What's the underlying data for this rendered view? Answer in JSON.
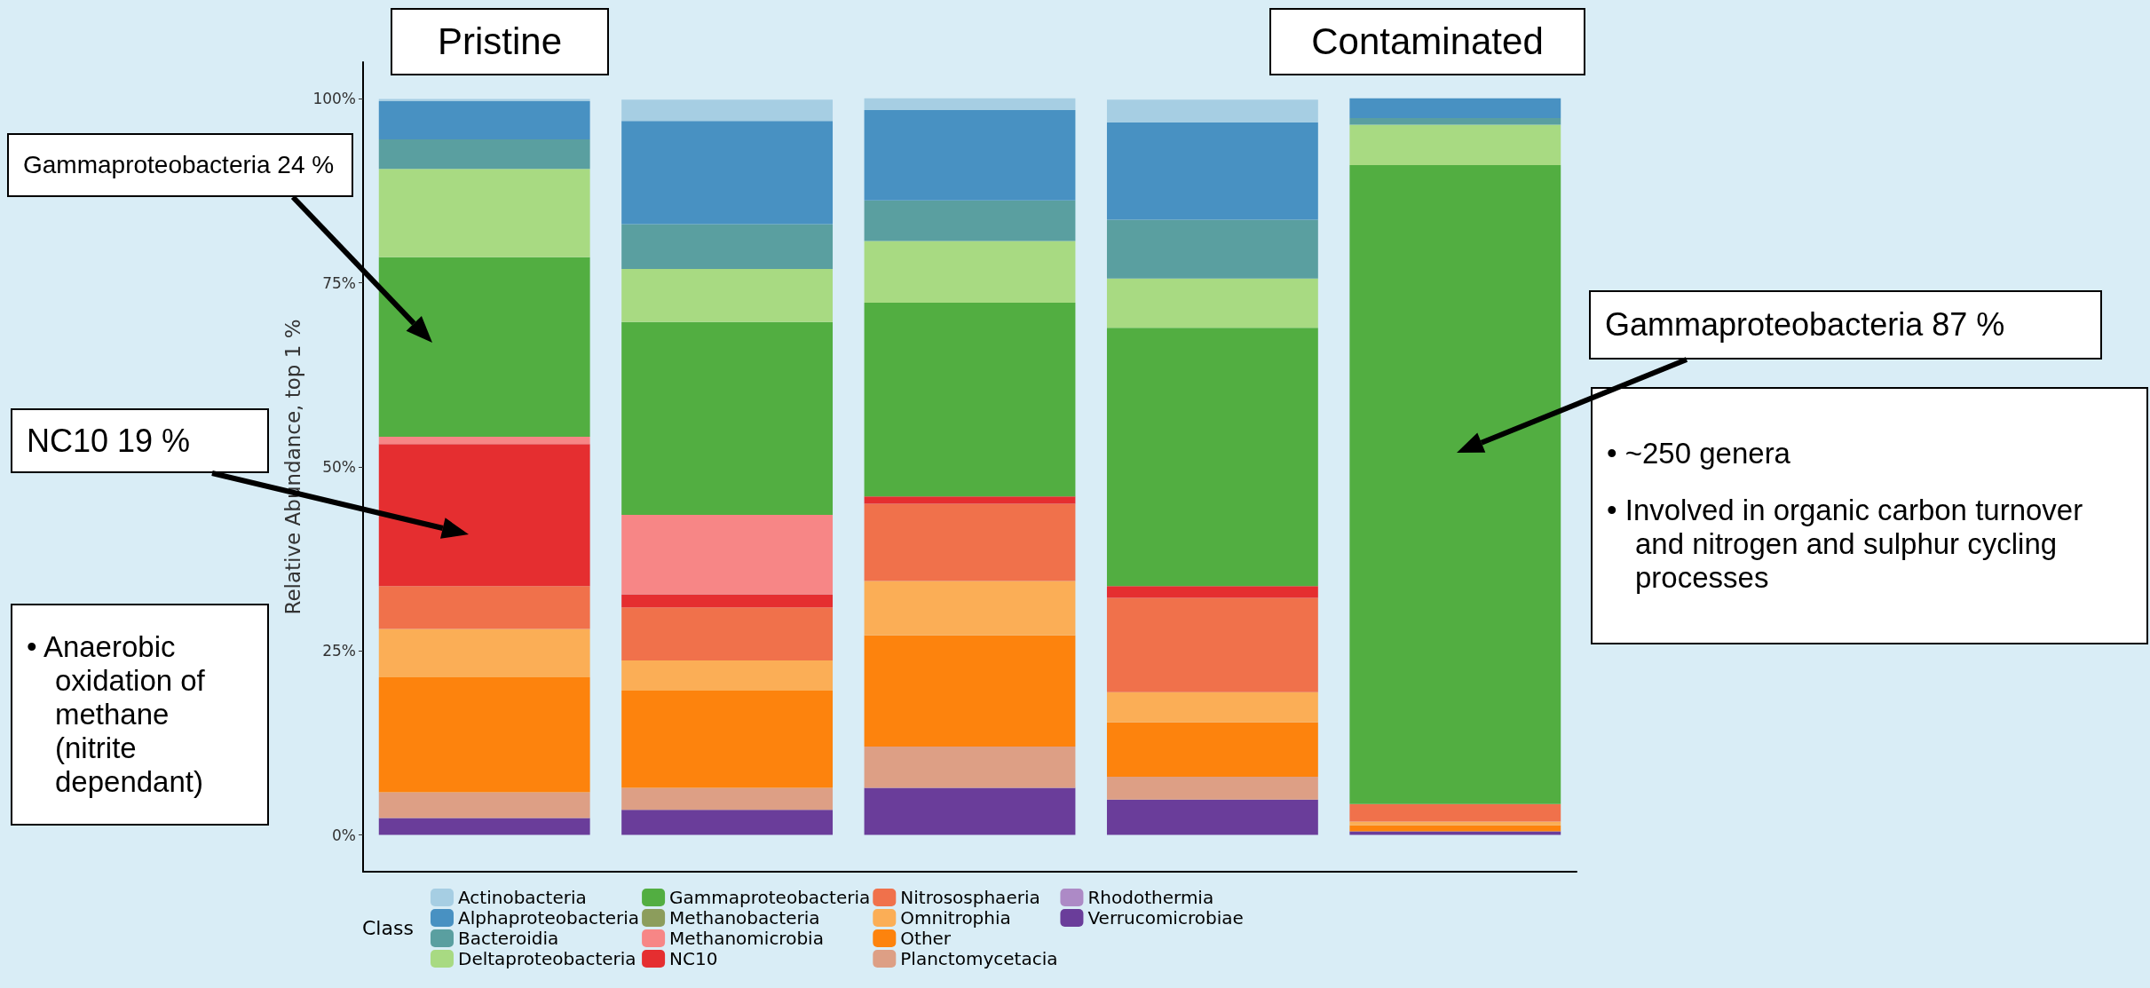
{
  "chart_data": {
    "type": "bar",
    "stacked": true,
    "categories": [
      null,
      null,
      null,
      null,
      null
    ],
    "ylabel": "Relative Abundance, top 1 %",
    "legend_title": "Class",
    "ylim": [
      -5,
      105
    ],
    "yticks": [
      {
        "value": 0,
        "label": "0%"
      },
      {
        "value": 25,
        "label": "25%"
      },
      {
        "value": 50,
        "label": "50%"
      },
      {
        "value": 75,
        "label": "75%"
      },
      {
        "value": 100,
        "label": "100%"
      }
    ],
    "tick_labels": "y",
    "grid": false,
    "legend": "bottom",
    "series": [
      {
        "name": "Verrucomicrobiae",
        "color": "#6a3d9a",
        "values": [
          2.3,
          3.4,
          6.4,
          4.8,
          0.5
        ]
      },
      {
        "name": "Rhodothermia",
        "color": "#ad8ac6",
        "values": [
          0,
          0,
          0,
          0,
          0
        ]
      },
      {
        "name": "Planctomycetacia",
        "color": "#dd9f85",
        "values": [
          3.5,
          3.0,
          5.6,
          3.1,
          0
        ]
      },
      {
        "name": "Other",
        "color": "#fd830d",
        "values": [
          15.6,
          13.2,
          15.1,
          7.4,
          0.8
        ]
      },
      {
        "name": "Omnitrophia",
        "color": "#fbae56",
        "values": [
          6.6,
          4.1,
          7.4,
          4.1,
          0.5
        ]
      },
      {
        "name": "Nitrososphaeria",
        "color": "#f0714b",
        "values": [
          5.8,
          7.2,
          10.5,
          12.8,
          2.4
        ]
      },
      {
        "name": "NC10",
        "color": "#e52e30",
        "values": [
          19.3,
          1.8,
          1.0,
          1.6,
          0
        ]
      },
      {
        "name": "Methanomicrobia",
        "color": "#f78686",
        "values": [
          1.0,
          10.8,
          0,
          0,
          0
        ]
      },
      {
        "name": "Methanobacteria",
        "color": "#8c9d5c",
        "values": [
          0,
          0,
          0,
          0,
          0
        ]
      },
      {
        "name": "Gammaproteobacteria",
        "color": "#52ae41",
        "values": [
          24.4,
          26.2,
          26.3,
          35.1,
          86.8
        ]
      },
      {
        "name": "Deltaproteobacteria",
        "color": "#a8da82",
        "values": [
          12.0,
          7.2,
          8.4,
          6.7,
          5.5
        ]
      },
      {
        "name": "Bacteroidia",
        "color": "#5a9fa0",
        "values": [
          4.0,
          6.1,
          5.5,
          8.0,
          0.9
        ]
      },
      {
        "name": "Alphaproteobacteria",
        "color": "#4891c2",
        "values": [
          5.2,
          14.0,
          12.3,
          13.2,
          2.7
        ]
      },
      {
        "name": "Actinobacteria",
        "color": "#a6cee3",
        "values": [
          0.3,
          2.9,
          1.6,
          3.1,
          0
        ]
      }
    ],
    "annotations": [
      "Pristine",
      "Contaminated",
      "Gammaproteobacteria 24 %",
      "NC10 19 %",
      "Gammaproteobacteria 87 %",
      "• ~250 genera",
      "• Involved in organic carbon turnover and nitrogen and sulphur cycling processes",
      "• Anaerobic oxidation of methane (nitrite dependant)"
    ]
  }
}
